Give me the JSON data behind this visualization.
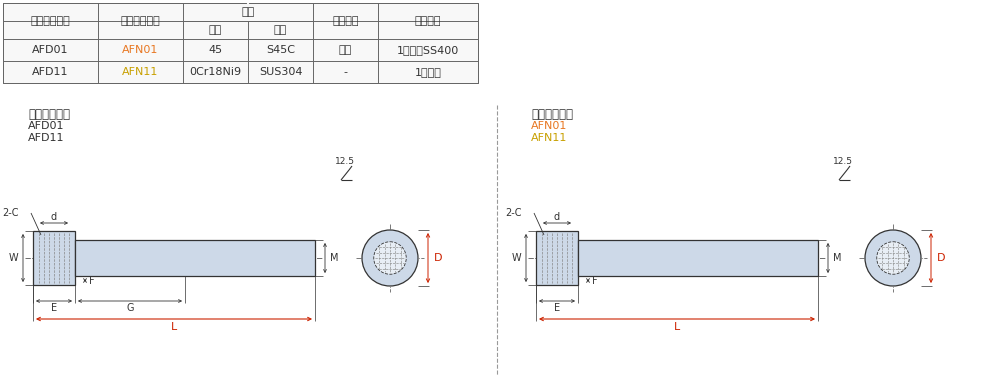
{
  "bg_color": "#ffffff",
  "table": {
    "afn01_color": "#e87722",
    "afn11_color": "#c8a000",
    "rows": [
      [
        "AFD01",
        "AFN01",
        "45",
        "S45C",
        "发黑",
        "1个耶帺SS400"
      ],
      [
        "AFD11",
        "AFN11",
        "0Cr18Ni9",
        "SUS304",
        "-",
        "1个耶帺"
      ]
    ]
  },
  "left_panel": {
    "title": "带扁方半牙型",
    "line1": "AFD01",
    "line2": "AFD11",
    "line1_color": "#333333",
    "line2_color": "#333333"
  },
  "right_panel": {
    "title": "带扁方全牙型",
    "line1": "AFN01",
    "line2": "AFN11",
    "line1_color": "#e87722",
    "line2_color": "#c8a000"
  },
  "body_color": "#cdd9e8",
  "line_color": "#333333",
  "dim_color": "#333333",
  "L_dim_color": "#cc2200",
  "D_dim_color": "#cc2200",
  "header_zh": [
    "带扁方半牙型",
    "带扁方全牙型",
    "材质",
    "表面处理",
    "附件材质"
  ],
  "mat_zh": [
    "国标",
    "相当"
  ]
}
